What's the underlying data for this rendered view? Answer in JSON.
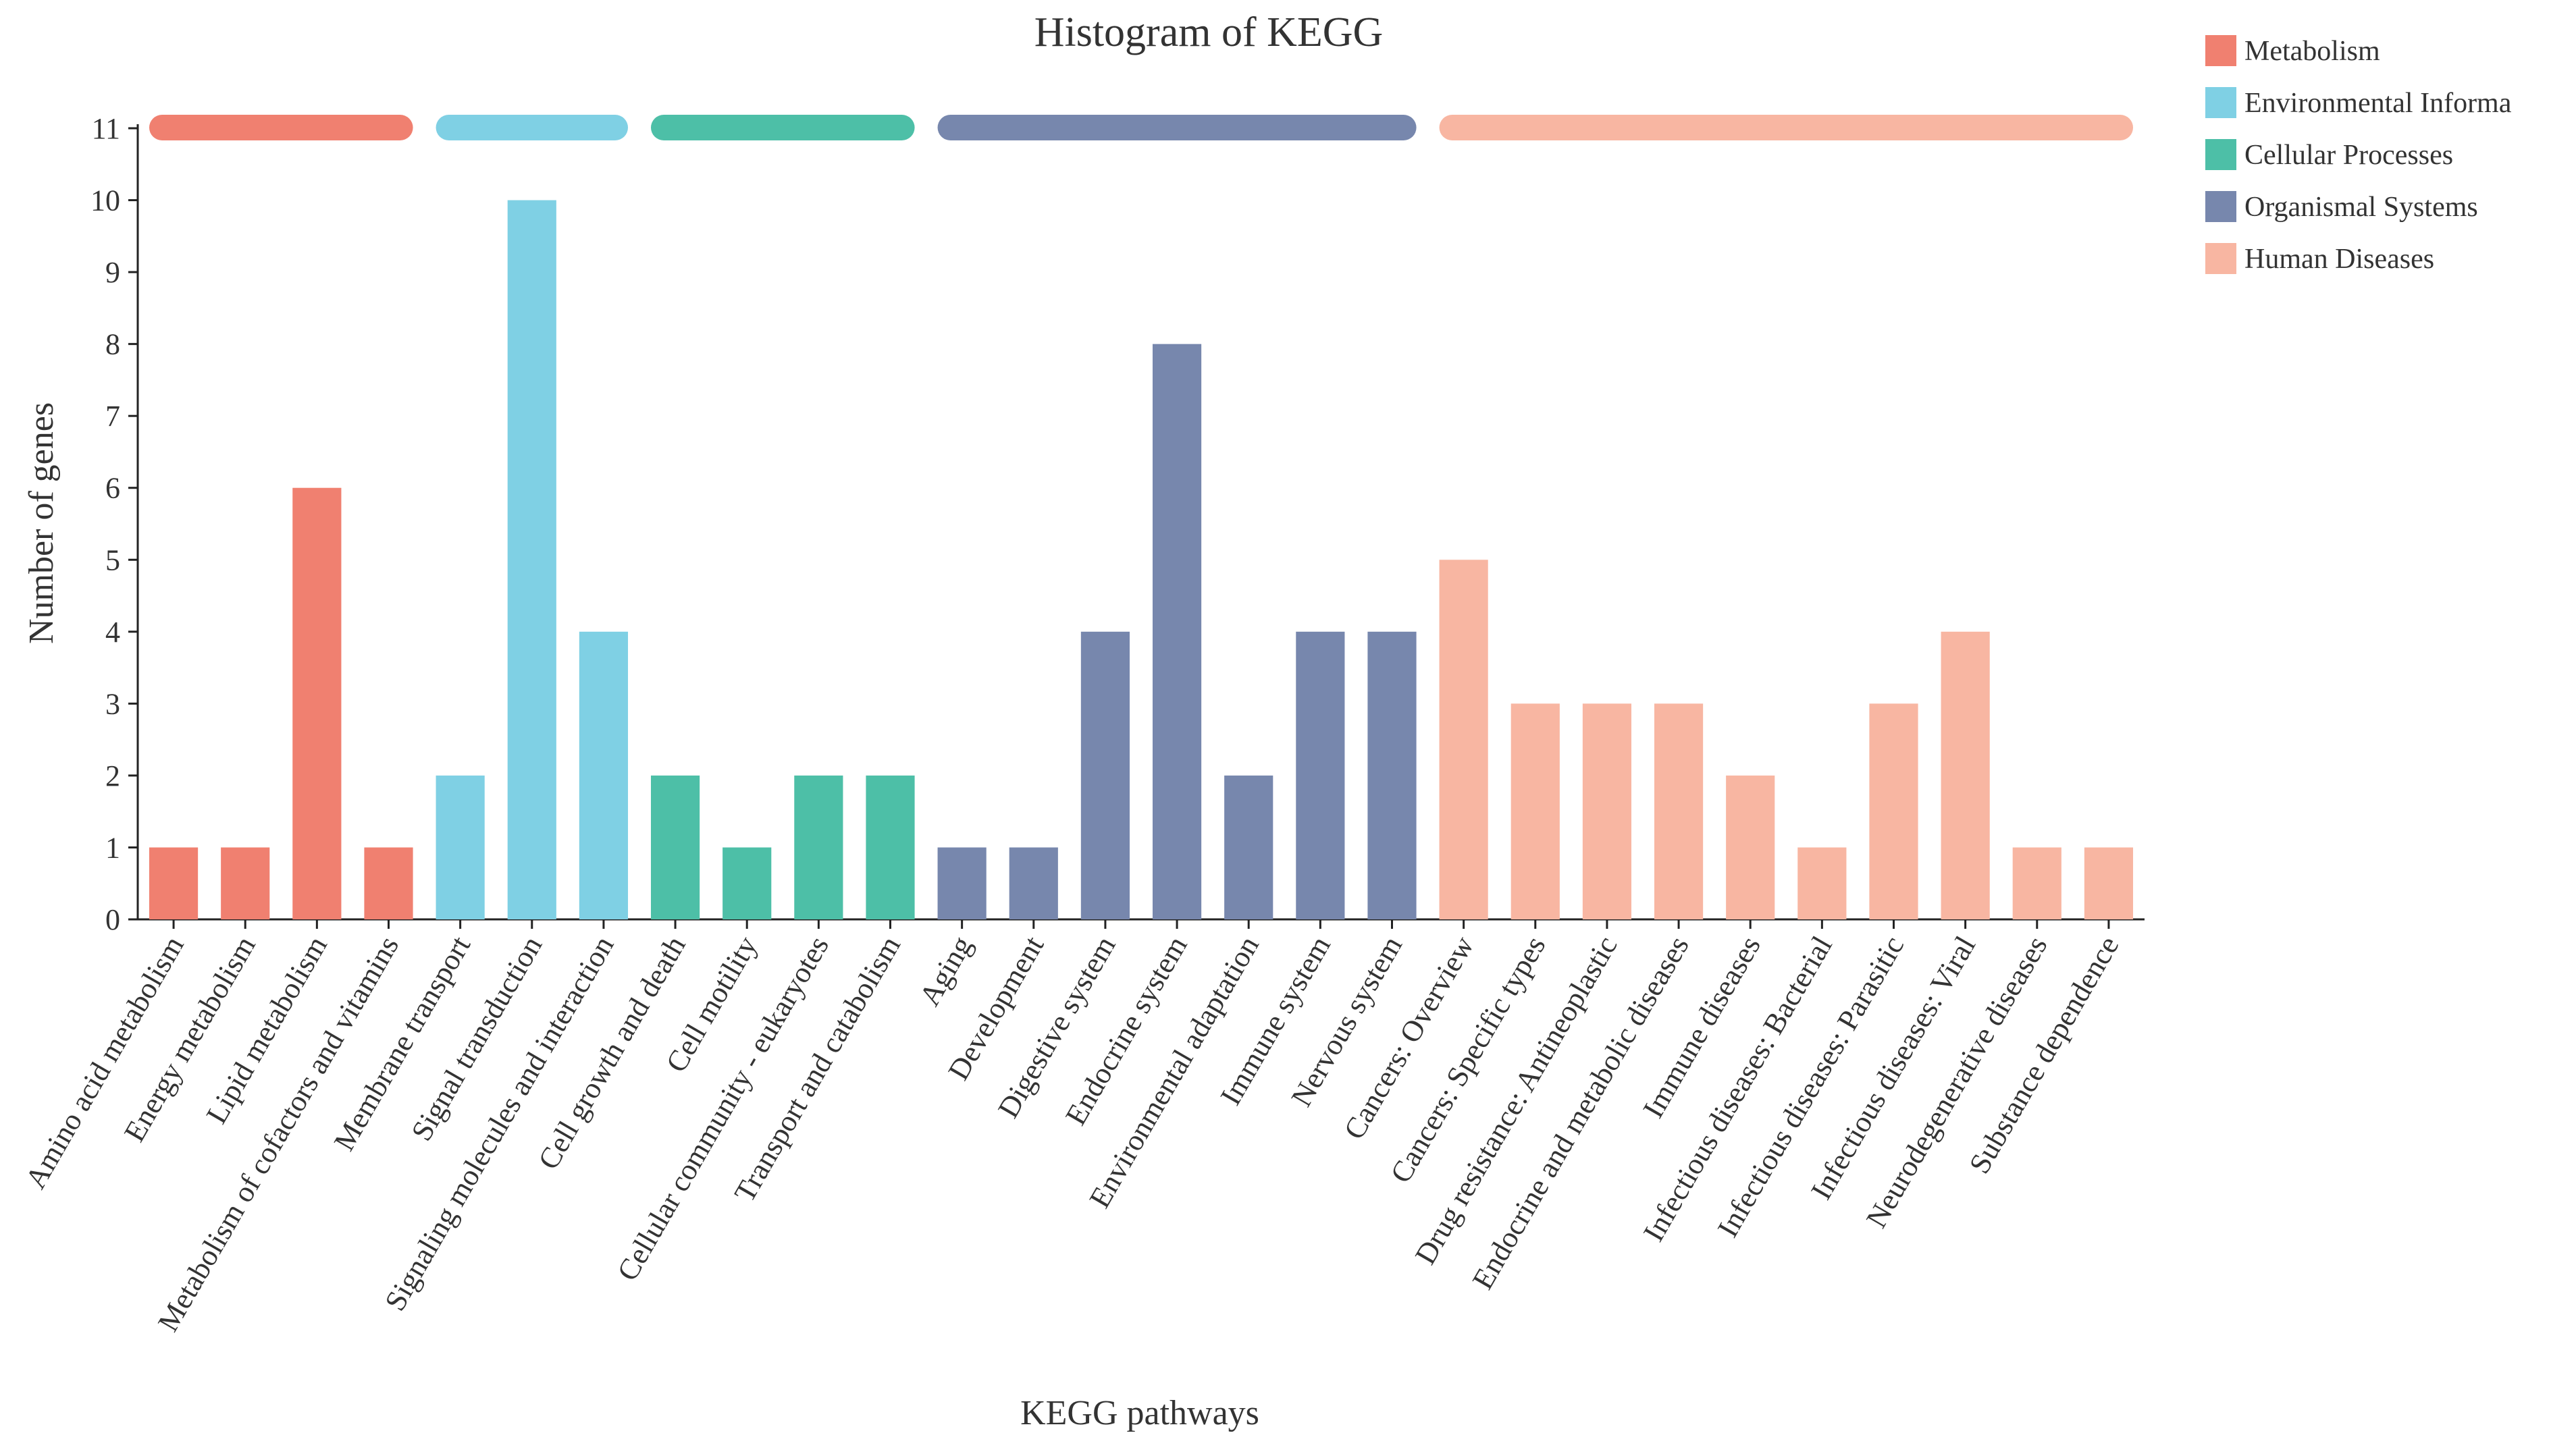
{
  "chart_data": {
    "type": "bar",
    "title": "Histogram of KEGG",
    "xlabel": "KEGG pathways",
    "ylabel": "Number of genes",
    "ylim": [
      0,
      11
    ],
    "yticks": [
      0,
      1,
      2,
      3,
      4,
      5,
      6,
      7,
      8,
      9,
      10,
      11
    ],
    "legend_position": "top-right",
    "groups": [
      {
        "name": "Metabolism",
        "label": "Metabolism",
        "color": "#f08070",
        "categories": [
          "Amino acid metabolism",
          "Energy metabolism",
          "Lipid metabolism",
          "Metabolism of cofactors and vitamins"
        ],
        "values": [
          1,
          1,
          6,
          1
        ]
      },
      {
        "name": "Environmental Information Processing",
        "label": "Environmental Informa",
        "color": "#7fd0e4",
        "categories": [
          "Membrane transport",
          "Signal transduction",
          "Signaling molecules and interaction"
        ],
        "values": [
          2,
          10,
          4
        ]
      },
      {
        "name": "Cellular Processes",
        "label": "Cellular Processes",
        "color": "#4dbfa7",
        "categories": [
          "Cell growth and death",
          "Cell motility",
          "Cellular community - eukaryotes",
          "Transport and catabolism"
        ],
        "values": [
          2,
          1,
          2,
          2
        ]
      },
      {
        "name": "Organismal Systems",
        "label": "Organismal Systems",
        "color": "#7787ad",
        "categories": [
          "Aging",
          "Development",
          "Digestive system",
          "Endocrine system",
          "Environmental adaptation",
          "Immune system",
          "Nervous system"
        ],
        "values": [
          1,
          1,
          4,
          8,
          2,
          4,
          4
        ]
      },
      {
        "name": "Human Diseases",
        "label": "Human Diseases",
        "color": "#f8b6a2",
        "categories": [
          "Cancers: Overview",
          "Cancers: Specific types",
          "Drug resistance: Antineoplastic",
          "Endocrine and metabolic diseases",
          "Immune diseases",
          "Infectious diseases: Bacterial",
          "Infectious diseases: Parasitic",
          "Infectious diseases: Viral",
          "Neurodegenerative diseases",
          "Substance dependence"
        ],
        "values": [
          5,
          3,
          3,
          3,
          2,
          1,
          3,
          4,
          1,
          1
        ]
      }
    ]
  }
}
